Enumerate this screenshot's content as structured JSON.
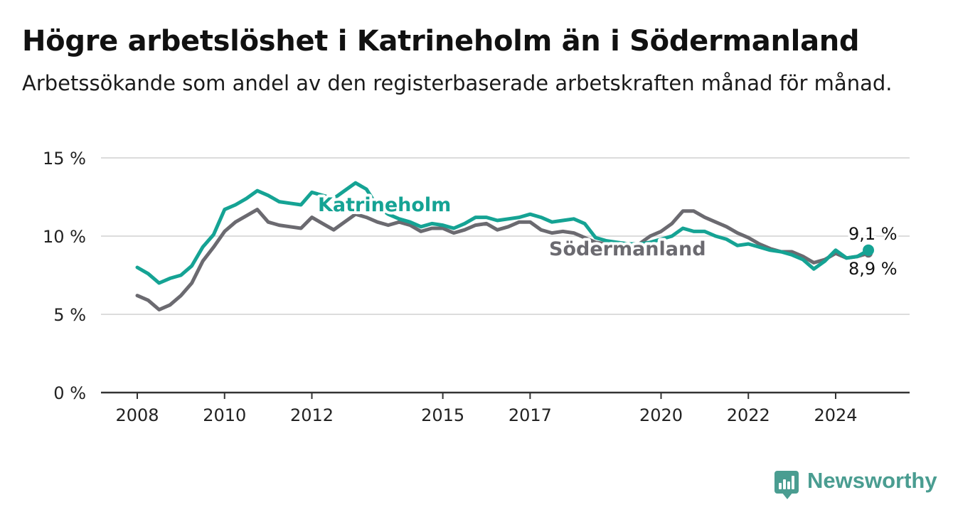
{
  "header": {
    "title": "Högre arbetslöshet i Katrineholm än i Södermanland",
    "subtitle": "Arbetssökande som andel av den registerbaserade arbetskraften månad för månad."
  },
  "brand": {
    "name": "Newsworthy",
    "icon": "bar-chart-speech-bubble-icon"
  },
  "colors": {
    "katrineholm": "#15a394",
    "sodermanland": "#6b6a70",
    "grid": "#dcdcdc",
    "axis": "#333333",
    "brand": "#4a9d91"
  },
  "chart_data": {
    "type": "line",
    "title": "Högre arbetslöshet i Katrineholm än i Södermanland",
    "subtitle": "Arbetssökande som andel av den registerbaserade arbetskraften månad för månad.",
    "ylim": [
      0,
      15
    ],
    "y_ticks": [
      0,
      5,
      10,
      15
    ],
    "y_tick_labels": [
      "0 %",
      "5 %",
      "10 %",
      "15 %"
    ],
    "x_ticks": [
      2008,
      2010,
      2012,
      2015,
      2017,
      2020,
      2022,
      2024
    ],
    "x_tick_labels": [
      "2008",
      "2010",
      "2012",
      "2015",
      "2017",
      "2020",
      "2022",
      "2024"
    ],
    "grid": true,
    "series": [
      {
        "name": "Katrineholm",
        "label_position": "inline",
        "end_label": "9,1 %",
        "points": [
          [
            2008.0,
            8.0
          ],
          [
            2008.25,
            7.6
          ],
          [
            2008.5,
            7.0
          ],
          [
            2008.75,
            7.3
          ],
          [
            2009.0,
            7.5
          ],
          [
            2009.25,
            8.1
          ],
          [
            2009.5,
            9.3
          ],
          [
            2009.75,
            10.1
          ],
          [
            2010.0,
            11.7
          ],
          [
            2010.25,
            12.0
          ],
          [
            2010.5,
            12.4
          ],
          [
            2010.75,
            12.9
          ],
          [
            2011.0,
            12.6
          ],
          [
            2011.25,
            12.2
          ],
          [
            2011.5,
            12.1
          ],
          [
            2011.75,
            12.0
          ],
          [
            2012.0,
            12.8
          ],
          [
            2012.25,
            12.6
          ],
          [
            2012.5,
            12.4
          ],
          [
            2012.75,
            12.9
          ],
          [
            2013.0,
            13.4
          ],
          [
            2013.25,
            13.0
          ],
          [
            2013.5,
            11.9
          ],
          [
            2013.75,
            11.4
          ],
          [
            2014.0,
            11.1
          ],
          [
            2014.25,
            10.9
          ],
          [
            2014.5,
            10.6
          ],
          [
            2014.75,
            10.8
          ],
          [
            2015.0,
            10.7
          ],
          [
            2015.25,
            10.5
          ],
          [
            2015.5,
            10.8
          ],
          [
            2015.75,
            11.2
          ],
          [
            2016.0,
            11.2
          ],
          [
            2016.25,
            11.0
          ],
          [
            2016.5,
            11.1
          ],
          [
            2016.75,
            11.2
          ],
          [
            2017.0,
            11.4
          ],
          [
            2017.25,
            11.2
          ],
          [
            2017.5,
            10.9
          ],
          [
            2017.75,
            11.0
          ],
          [
            2018.0,
            11.1
          ],
          [
            2018.25,
            10.8
          ],
          [
            2018.5,
            9.9
          ],
          [
            2018.75,
            9.7
          ],
          [
            2019.0,
            9.6
          ],
          [
            2019.25,
            9.5
          ],
          [
            2019.5,
            9.5
          ],
          [
            2019.75,
            9.6
          ],
          [
            2020.0,
            9.8
          ],
          [
            2020.25,
            10.0
          ],
          [
            2020.5,
            10.5
          ],
          [
            2020.75,
            10.3
          ],
          [
            2021.0,
            10.3
          ],
          [
            2021.25,
            10.0
          ],
          [
            2021.5,
            9.8
          ],
          [
            2021.75,
            9.4
          ],
          [
            2022.0,
            9.5
          ],
          [
            2022.25,
            9.3
          ],
          [
            2022.5,
            9.1
          ],
          [
            2022.75,
            9.0
          ],
          [
            2023.0,
            8.8
          ],
          [
            2023.25,
            8.5
          ],
          [
            2023.5,
            7.9
          ],
          [
            2023.75,
            8.4
          ],
          [
            2024.0,
            9.1
          ],
          [
            2024.25,
            8.6
          ],
          [
            2024.5,
            8.7
          ],
          [
            2024.75,
            9.1
          ]
        ]
      },
      {
        "name": "Södermanland",
        "label_position": "inline",
        "end_label": "8,9 %",
        "points": [
          [
            2008.0,
            6.2
          ],
          [
            2008.25,
            5.9
          ],
          [
            2008.5,
            5.3
          ],
          [
            2008.75,
            5.6
          ],
          [
            2009.0,
            6.2
          ],
          [
            2009.25,
            7.0
          ],
          [
            2009.5,
            8.4
          ],
          [
            2009.75,
            9.3
          ],
          [
            2010.0,
            10.3
          ],
          [
            2010.25,
            10.9
          ],
          [
            2010.5,
            11.3
          ],
          [
            2010.75,
            11.7
          ],
          [
            2011.0,
            10.9
          ],
          [
            2011.25,
            10.7
          ],
          [
            2011.5,
            10.6
          ],
          [
            2011.75,
            10.5
          ],
          [
            2012.0,
            11.2
          ],
          [
            2012.25,
            10.8
          ],
          [
            2012.5,
            10.4
          ],
          [
            2012.75,
            10.9
          ],
          [
            2013.0,
            11.4
          ],
          [
            2013.25,
            11.2
          ],
          [
            2013.5,
            10.9
          ],
          [
            2013.75,
            10.7
          ],
          [
            2014.0,
            10.9
          ],
          [
            2014.25,
            10.7
          ],
          [
            2014.5,
            10.3
          ],
          [
            2014.75,
            10.5
          ],
          [
            2015.0,
            10.5
          ],
          [
            2015.25,
            10.2
          ],
          [
            2015.5,
            10.4
          ],
          [
            2015.75,
            10.7
          ],
          [
            2016.0,
            10.8
          ],
          [
            2016.25,
            10.4
          ],
          [
            2016.5,
            10.6
          ],
          [
            2016.75,
            10.9
          ],
          [
            2017.0,
            10.9
          ],
          [
            2017.25,
            10.4
          ],
          [
            2017.5,
            10.2
          ],
          [
            2017.75,
            10.3
          ],
          [
            2018.0,
            10.2
          ],
          [
            2018.25,
            9.9
          ],
          [
            2018.5,
            9.6
          ],
          [
            2018.75,
            9.5
          ],
          [
            2019.0,
            9.4
          ],
          [
            2019.25,
            9.3
          ],
          [
            2019.5,
            9.5
          ],
          [
            2019.75,
            10.0
          ],
          [
            2020.0,
            10.3
          ],
          [
            2020.25,
            10.8
          ],
          [
            2020.5,
            11.6
          ],
          [
            2020.75,
            11.6
          ],
          [
            2021.0,
            11.2
          ],
          [
            2021.25,
            10.9
          ],
          [
            2021.5,
            10.6
          ],
          [
            2021.75,
            10.2
          ],
          [
            2022.0,
            9.9
          ],
          [
            2022.25,
            9.5
          ],
          [
            2022.5,
            9.2
          ],
          [
            2022.75,
            9.0
          ],
          [
            2023.0,
            9.0
          ],
          [
            2023.25,
            8.7
          ],
          [
            2023.5,
            8.3
          ],
          [
            2023.75,
            8.5
          ],
          [
            2024.0,
            8.9
          ],
          [
            2024.25,
            8.6
          ],
          [
            2024.5,
            8.7
          ],
          [
            2024.75,
            8.9
          ]
        ]
      }
    ]
  }
}
